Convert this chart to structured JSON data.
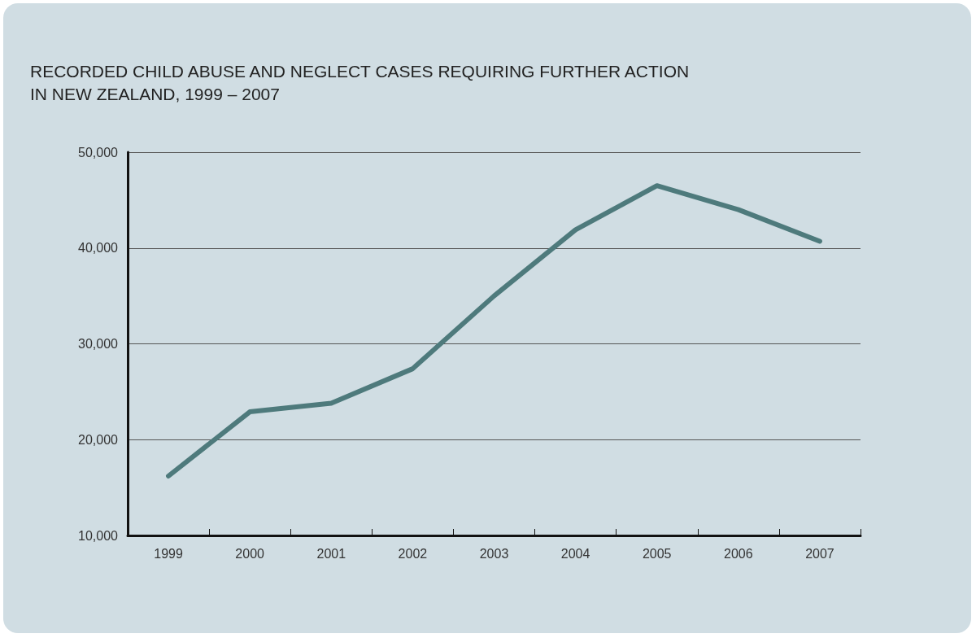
{
  "chart_data": {
    "type": "line",
    "title": "RECORDED CHILD ABUSE AND NEGLECT CASES REQUIRING FURTHER ACTION\nIN NEW ZEALAND, 1999 – 2007",
    "categories": [
      "1999",
      "2000",
      "2001",
      "2002",
      "2003",
      "2004",
      "2005",
      "2006",
      "2007"
    ],
    "series": [
      {
        "color": "#4e7a7c",
        "values": [
          16200,
          22900,
          23800,
          27400,
          35000,
          41900,
          46500,
          44000,
          40700
        ]
      }
    ],
    "ylim": [
      10000,
      50000
    ],
    "yticks": [
      {
        "value": 10000,
        "label": "10,000"
      },
      {
        "value": 20000,
        "label": "20,000"
      },
      {
        "value": 30000,
        "label": "30,000"
      },
      {
        "value": 40000,
        "label": "40,000"
      },
      {
        "value": 50000,
        "label": "50,000"
      }
    ],
    "grid": "y",
    "marker": "none",
    "line_style": "solid"
  }
}
